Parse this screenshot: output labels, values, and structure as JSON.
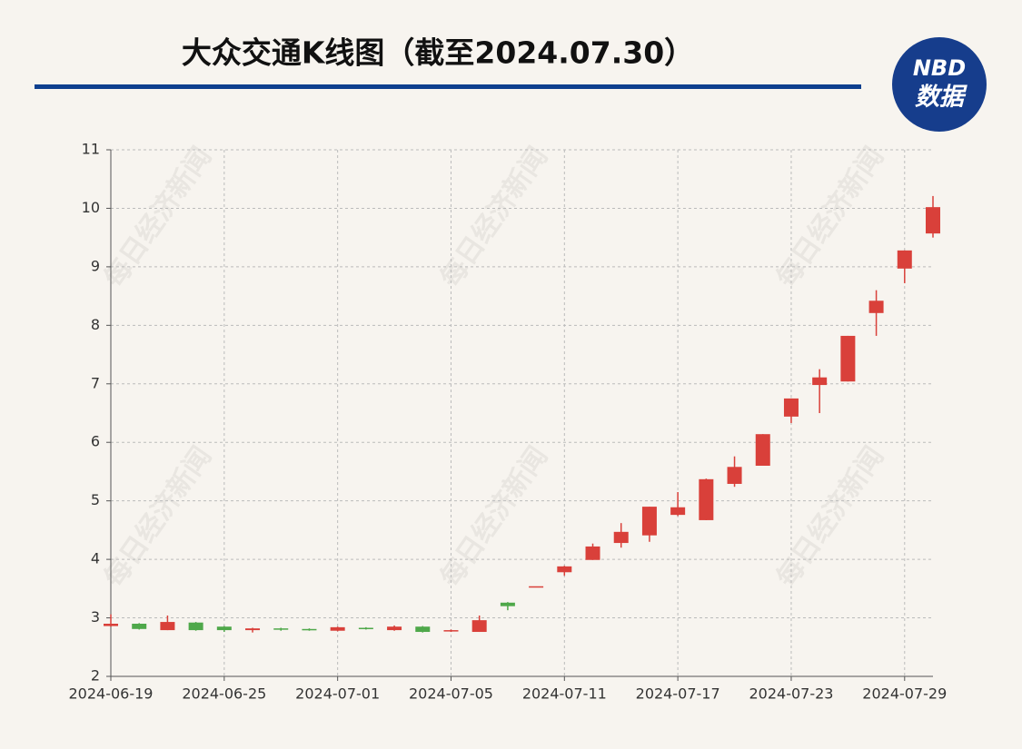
{
  "chart_data": {
    "type": "candlestick",
    "title": "大众交通K线图（截至2024.07.30）",
    "logo": {
      "top": "NBD",
      "bottom": "数据"
    },
    "watermark": "每日经济新闻",
    "x": [
      "2024-06-19",
      "2024-06-20",
      "2024-06-21",
      "2024-06-24",
      "2024-06-25",
      "2024-06-26",
      "2024-06-27",
      "2024-06-28",
      "2024-07-01",
      "2024-07-02",
      "2024-07-03",
      "2024-07-04",
      "2024-07-05",
      "2024-07-08",
      "2024-07-09",
      "2024-07-10",
      "2024-07-11",
      "2024-07-12",
      "2024-07-15",
      "2024-07-16",
      "2024-07-17",
      "2024-07-18",
      "2024-07-19",
      "2024-07-22",
      "2024-07-23",
      "2024-07-24",
      "2024-07-25",
      "2024-07-26",
      "2024-07-29",
      "2024-07-30"
    ],
    "open": [
      2.86,
      2.9,
      2.79,
      2.92,
      2.85,
      2.79,
      2.82,
      2.81,
      2.78,
      2.83,
      2.79,
      2.85,
      2.77,
      2.76,
      3.26,
      3.54,
      3.78,
      3.99,
      4.28,
      4.41,
      4.76,
      4.67,
      5.29,
      5.6,
      6.44,
      6.98,
      7.04,
      8.21,
      8.97,
      9.57
    ],
    "high": [
      3.06,
      2.91,
      3.04,
      2.93,
      2.86,
      2.83,
      2.83,
      2.82,
      2.85,
      2.84,
      2.87,
      2.86,
      2.8,
      3.04,
      3.27,
      3.54,
      3.89,
      4.27,
      4.62,
      4.9,
      5.15,
      5.38,
      5.76,
      6.14,
      6.75,
      7.25,
      7.82,
      8.6,
      9.28,
      10.21
    ],
    "low": [
      2.85,
      2.8,
      2.79,
      2.78,
      2.76,
      2.75,
      2.78,
      2.78,
      2.77,
      2.8,
      2.78,
      2.75,
      2.76,
      2.76,
      3.13,
      3.54,
      3.72,
      3.99,
      4.2,
      4.3,
      4.74,
      4.67,
      5.24,
      5.6,
      6.33,
      6.5,
      7.04,
      7.82,
      8.72,
      9.5
    ],
    "close": [
      2.9,
      2.81,
      2.93,
      2.79,
      2.79,
      2.82,
      2.8,
      2.79,
      2.84,
      2.81,
      2.85,
      2.76,
      2.79,
      2.96,
      3.2,
      3.54,
      3.88,
      4.22,
      4.47,
      4.9,
      4.89,
      5.37,
      5.58,
      6.14,
      6.75,
      7.11,
      7.82,
      8.42,
      9.28,
      10.02
    ],
    "up_color": "#d9403a",
    "down_color": "#4fa84a",
    "xticks": [
      "2024-06-19",
      "2024-06-25",
      "2024-07-01",
      "2024-07-05",
      "2024-07-11",
      "2024-07-17",
      "2024-07-23",
      "2024-07-29"
    ],
    "ylim": [
      2,
      11
    ],
    "yticks": [
      2,
      3,
      4,
      5,
      6,
      7,
      8,
      9,
      10,
      11
    ],
    "grid": true
  }
}
